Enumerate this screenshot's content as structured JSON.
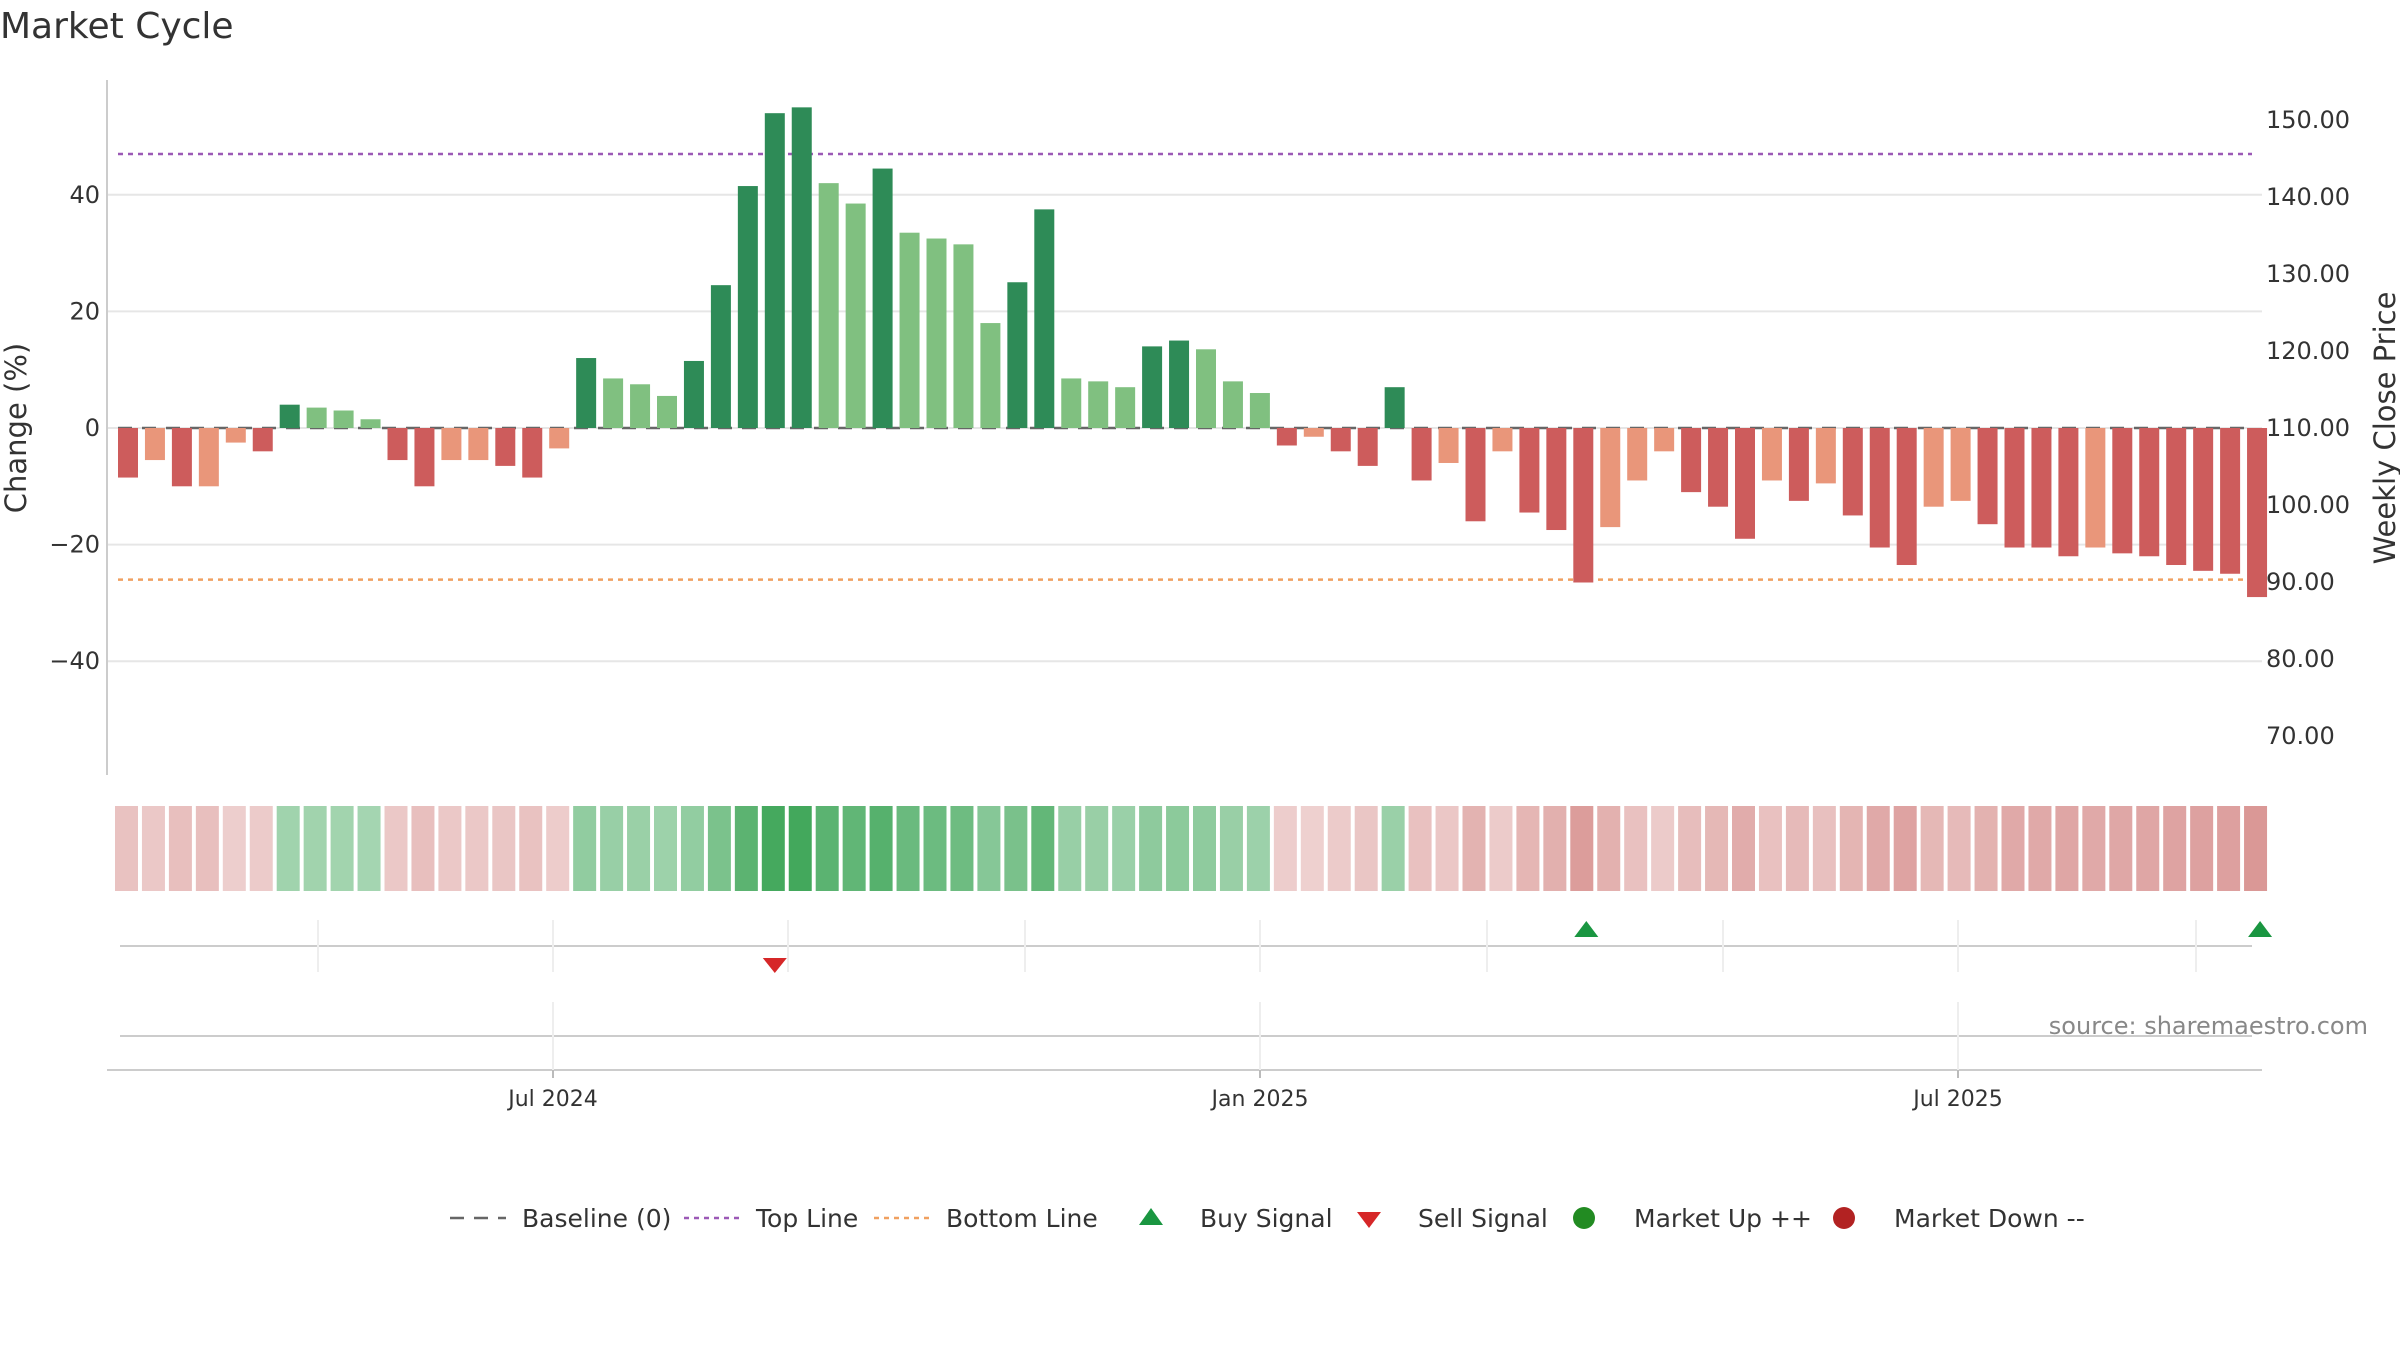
{
  "title": "Market Cycle",
  "source": "source: sharemaestro.com",
  "colors": {
    "dark_green": "#2e8b57",
    "light_green": "#80c080",
    "red": "#cd5c5c",
    "salmon": "#e9967a",
    "top_line": "#9b59b6",
    "bottom_line": "#f0a060",
    "baseline": "#666666",
    "buy": "#1a9641",
    "sell": "#d62728",
    "market_up": "#228b22",
    "market_down": "#b22222",
    "grid": "#e6e6e6"
  },
  "legend": [
    {
      "label": "Baseline (0)",
      "icon": "dash-line-icon",
      "color": "#666666"
    },
    {
      "label": "Top Line",
      "icon": "dotted-line-icon",
      "color": "#9b59b6"
    },
    {
      "label": "Bottom Line",
      "icon": "dotted-line-icon",
      "color": "#f0a060"
    },
    {
      "label": "Buy Signal",
      "icon": "triangle-up-icon",
      "color": "#1a9641"
    },
    {
      "label": "Sell Signal",
      "icon": "triangle-down-icon",
      "color": "#d62728"
    },
    {
      "label": "Market Up ++",
      "icon": "circle-icon",
      "color": "#228b22"
    },
    {
      "label": "Market Down --",
      "icon": "circle-icon",
      "color": "#b22222"
    }
  ],
  "chart_data": {
    "type": "bar",
    "title": "Market Cycle",
    "ylabel_left": "Change (%)",
    "ylabel_right": "Weekly Close Price",
    "ylim_left": [
      -60,
      60
    ],
    "yticks_left": [
      40,
      20,
      0,
      -20,
      -40
    ],
    "ytick_labels_left": [
      "40",
      "20",
      "0",
      "−20",
      "−40"
    ],
    "ylim_right": [
      65,
      155
    ],
    "yticks_right": [
      "150.00",
      "140.00",
      "130.00",
      "120.00",
      "110.00",
      "100.00",
      "90.00",
      "80.00",
      "70.00"
    ],
    "x_ticks": [
      "Jul 2024",
      "Jan 2025",
      "Jul 2025"
    ],
    "top_line": 47,
    "bottom_line": -26,
    "baseline": 0,
    "grid": true,
    "legend_position": "bottom",
    "values": [
      -8.5,
      -5.5,
      -10,
      -10,
      -2.5,
      -4,
      4,
      3.5,
      3,
      1.5,
      -5.5,
      -10,
      -5.5,
      -5.5,
      -6.5,
      -8.5,
      -3.5,
      12,
      8.5,
      7.5,
      5.5,
      11.5,
      24.5,
      41.5,
      54,
      55,
      42,
      38.5,
      44.5,
      33.5,
      32.5,
      31.5,
      18,
      25,
      37.5,
      8.5,
      8,
      7,
      14,
      15,
      13.5,
      8,
      6,
      -3,
      -1.5,
      -4,
      -6.5,
      7,
      -9,
      -6,
      -16,
      -4,
      -14.5,
      -17.5,
      -26.5,
      -17,
      -9,
      -4,
      -11,
      -13.5,
      -19,
      -9,
      -12.5,
      -9.5,
      -15,
      -20.5,
      -23.5,
      -13.5,
      -12.5,
      -16.5,
      -20.5,
      -20.5,
      -22,
      -20.5,
      -21.5,
      -22,
      -23.5,
      -24.5,
      -25,
      -29
    ],
    "bar_color_class": [
      "red",
      "salmon",
      "red",
      "salmon",
      "salmon",
      "red",
      "dark_green",
      "light_green",
      "light_green",
      "light_green",
      "red",
      "red",
      "salmon",
      "salmon",
      "red",
      "red",
      "salmon",
      "dark_green",
      "light_green",
      "light_green",
      "light_green",
      "dark_green",
      "dark_green",
      "dark_green",
      "dark_green",
      "dark_green",
      "light_green",
      "light_green",
      "dark_green",
      "light_green",
      "light_green",
      "light_green",
      "light_green",
      "dark_green",
      "dark_green",
      "light_green",
      "light_green",
      "light_green",
      "dark_green",
      "dark_green",
      "light_green",
      "light_green",
      "light_green",
      "red",
      "salmon",
      "red",
      "red",
      "dark_green",
      "red",
      "salmon",
      "red",
      "salmon",
      "red",
      "red",
      "red",
      "salmon",
      "salmon",
      "salmon",
      "red",
      "red",
      "red",
      "salmon",
      "red",
      "salmon",
      "red",
      "red",
      "red",
      "salmon",
      "salmon",
      "red",
      "red",
      "red",
      "red",
      "salmon",
      "red",
      "red",
      "red",
      "red",
      "red",
      "red"
    ],
    "signals": [
      {
        "type": "sell",
        "index": 24
      },
      {
        "type": "buy",
        "index": 54
      },
      {
        "type": "buy",
        "index": 79
      }
    ]
  }
}
